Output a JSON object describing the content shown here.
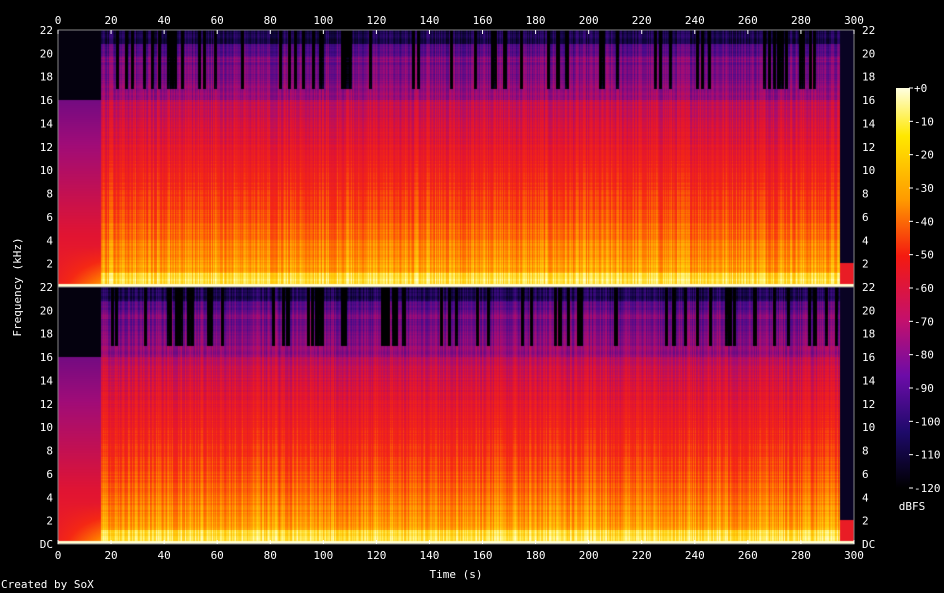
{
  "chart_data": {
    "type": "heatmap",
    "xlabel": "Time (s)",
    "ylabel": "Frequency (kHz)",
    "x_ticks": [
      "0",
      "20",
      "40",
      "60",
      "80",
      "100",
      "120",
      "140",
      "160",
      "180",
      "200",
      "220",
      "240",
      "260",
      "280",
      "300"
    ],
    "xlim": [
      0,
      300
    ],
    "channels": [
      {
        "y_ticks": [
          "2",
          "4",
          "6",
          "8",
          "10",
          "12",
          "14",
          "16",
          "18",
          "20",
          "22"
        ],
        "ylim": [
          0,
          22
        ]
      },
      {
        "y_ticks": [
          "DC",
          "2",
          "4",
          "6",
          "8",
          "10",
          "12",
          "14",
          "16",
          "18",
          "20",
          "22"
        ],
        "ylim": [
          0,
          22
        ]
      }
    ],
    "colorbar": {
      "label": "dBFS",
      "ticks": [
        "+0",
        "-10",
        "-20",
        "-30",
        "-40",
        "-50",
        "-60",
        "-70",
        "-80",
        "-90",
        "-100",
        "-110",
        "-120"
      ],
      "range": [
        -120,
        0
      ]
    },
    "regions": {
      "intro_end_s": 16,
      "intro_cutoff_khz": 16,
      "music_end_s": 295,
      "bright_band_khz": 19.5
    },
    "colors": {
      "peak": "#ffffd8",
      "yellow": "#ffd400",
      "orange": "#ff7a00",
      "red": "#f0101a",
      "magenta": "#c0106a",
      "purple": "#6a10a0",
      "navy": "#1a0a58",
      "black": "#000000"
    }
  },
  "credit": "Created by SoX"
}
